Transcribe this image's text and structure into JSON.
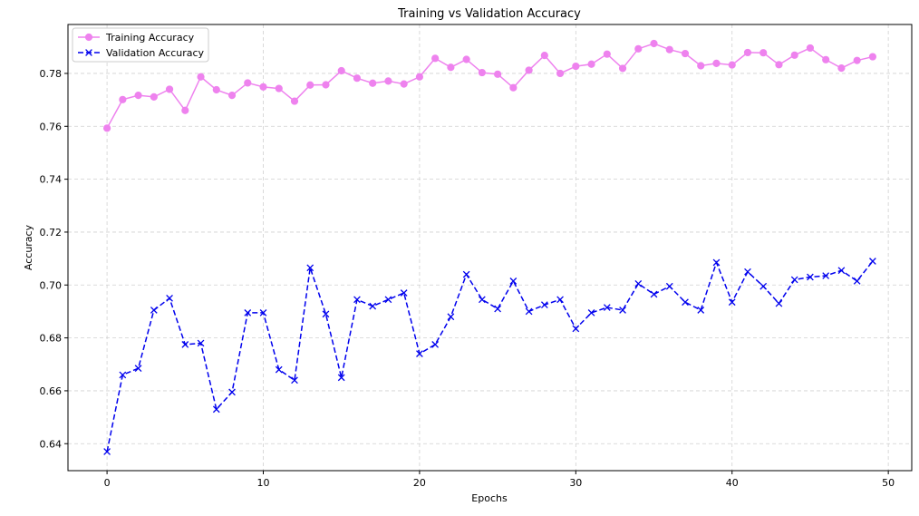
{
  "chart_data": {
    "type": "line",
    "title": "Training vs Validation Accuracy",
    "xlabel": "Epochs",
    "ylabel": "Accuracy",
    "xlim": [
      -2.5,
      51.5
    ],
    "ylim": [
      0.6298,
      0.7985
    ],
    "x_ticks": [
      0,
      10,
      20,
      30,
      40,
      50
    ],
    "y_ticks": [
      0.64,
      0.66,
      0.68,
      0.7,
      0.72,
      0.74,
      0.76,
      0.78
    ],
    "grid": true,
    "legend_position": "top-left",
    "x": [
      0,
      1,
      2,
      3,
      4,
      5,
      6,
      7,
      8,
      9,
      10,
      11,
      12,
      13,
      14,
      15,
      16,
      17,
      18,
      19,
      20,
      21,
      22,
      23,
      24,
      25,
      26,
      27,
      28,
      29,
      30,
      31,
      32,
      33,
      34,
      35,
      36,
      37,
      38,
      39,
      40,
      41,
      42,
      43,
      44,
      45,
      46,
      47,
      48,
      49
    ],
    "series": [
      {
        "name": "Training Accuracy",
        "color": "#ee82ee",
        "line_style": "solid",
        "marker": "circle",
        "values": [
          0.7593,
          0.7701,
          0.7717,
          0.7711,
          0.774,
          0.766,
          0.7787,
          0.7738,
          0.7717,
          0.7764,
          0.7749,
          0.7743,
          0.7695,
          0.7756,
          0.7757,
          0.781,
          0.7782,
          0.7763,
          0.7771,
          0.776,
          0.7787,
          0.7857,
          0.7823,
          0.7853,
          0.7803,
          0.7797,
          0.7746,
          0.7812,
          0.7868,
          0.78,
          0.7827,
          0.7835,
          0.7873,
          0.7819,
          0.7893,
          0.7913,
          0.789,
          0.7875,
          0.7829,
          0.7838,
          0.7832,
          0.7879,
          0.7878,
          0.7833,
          0.7869,
          0.7896,
          0.7852,
          0.782,
          0.7849,
          0.7863
        ]
      },
      {
        "name": "Validation Accuracy",
        "color": "#0000ee",
        "line_style": "dashed",
        "marker": "x",
        "values": [
          0.637,
          0.666,
          0.6685,
          0.6905,
          0.695,
          0.6775,
          0.678,
          0.653,
          0.6595,
          0.6895,
          0.6895,
          0.668,
          0.664,
          0.7065,
          0.689,
          0.665,
          0.6945,
          0.692,
          0.6945,
          0.697,
          0.674,
          0.6775,
          0.688,
          0.704,
          0.6945,
          0.691,
          0.7015,
          0.69,
          0.6925,
          0.6945,
          0.6835,
          0.6895,
          0.6915,
          0.6905,
          0.7005,
          0.6965,
          0.6995,
          0.6935,
          0.6905,
          0.7085,
          0.6935,
          0.705,
          0.6995,
          0.693,
          0.702,
          0.703,
          0.7035,
          0.7055,
          0.7015,
          0.709
        ]
      }
    ]
  }
}
